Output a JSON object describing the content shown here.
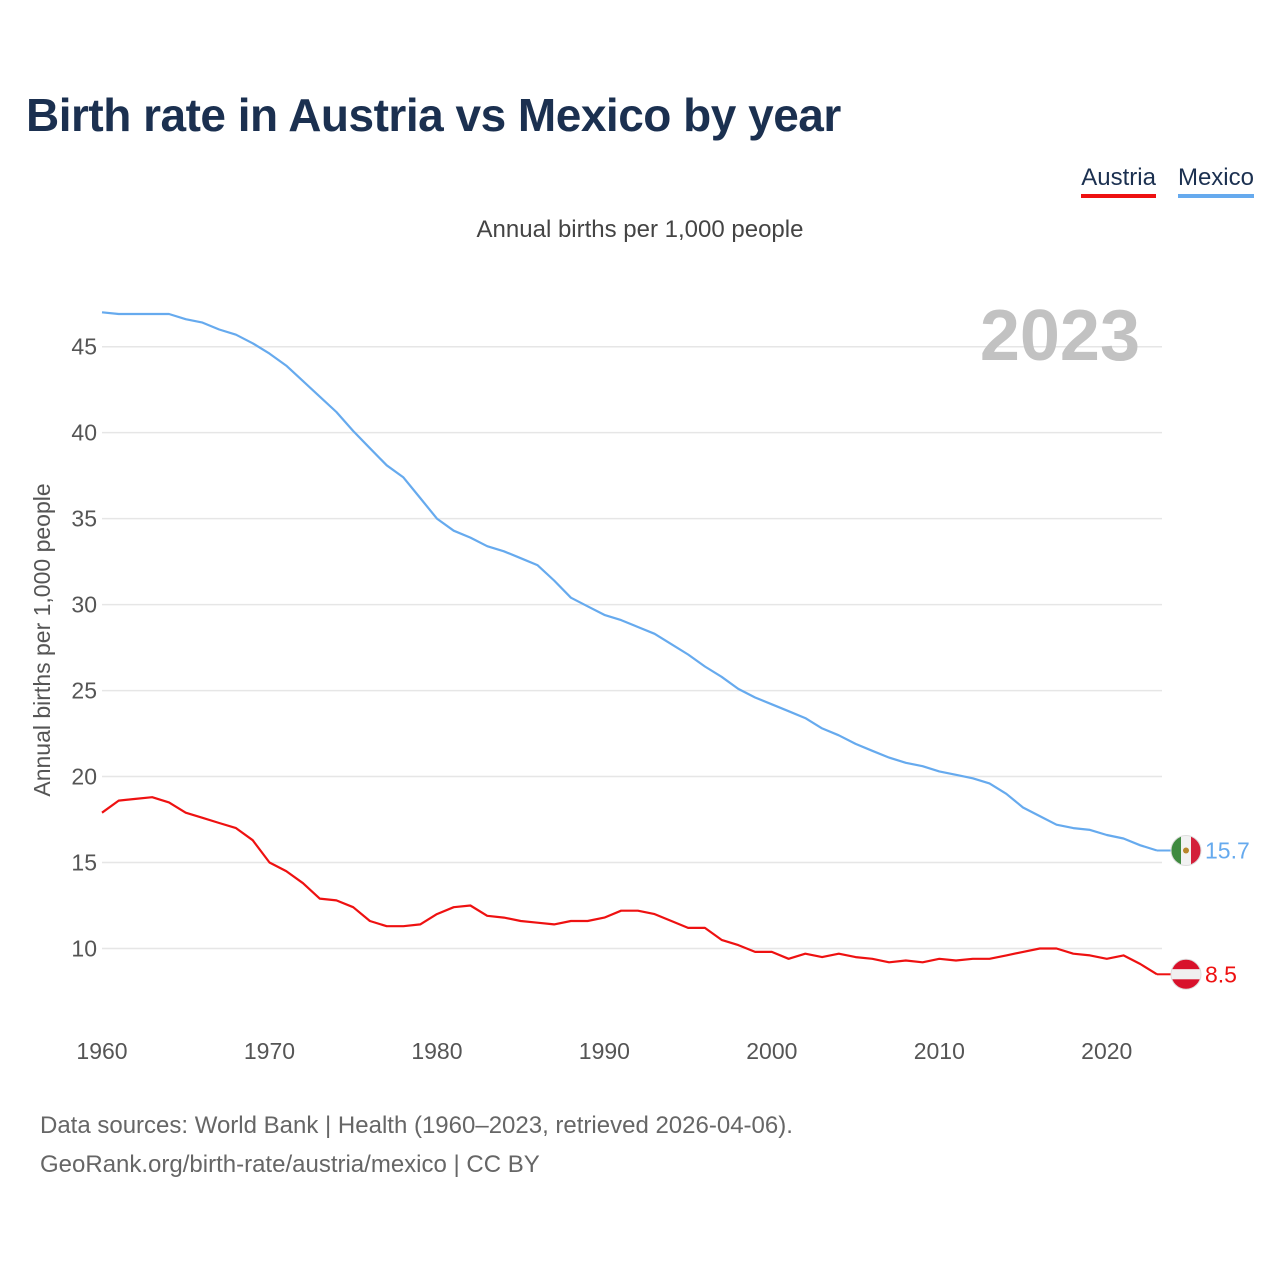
{
  "title": "Birth rate in Austria vs Mexico by year",
  "legend": [
    {
      "name": "Austria",
      "color": "#ee1111"
    },
    {
      "name": "Mexico",
      "color": "#66aaee"
    }
  ],
  "subtitle": "Annual births per 1,000 people",
  "year_watermark": "2023",
  "source": {
    "line1": "Data sources: World Bank | Health (1960–2023, retrieved 2026-04-06).",
    "line2": "GeoRank.org/birth-rate/austria/mexico | CC BY"
  },
  "chart_data": {
    "type": "line",
    "title": "Birth rate in Austria vs Mexico by year",
    "xlabel": "",
    "ylabel": "Annual births per 1,000 people",
    "xlim": [
      1960,
      2023
    ],
    "ylim": [
      5.9,
      47.6
    ],
    "x_ticks": [
      1960,
      1970,
      1980,
      1990,
      2000,
      2010,
      2020
    ],
    "y_ticks": [
      10,
      15,
      20,
      25,
      30,
      35,
      40,
      45
    ],
    "grid": true,
    "x": [
      1960,
      1961,
      1962,
      1963,
      1964,
      1965,
      1966,
      1967,
      1968,
      1969,
      1970,
      1971,
      1972,
      1973,
      1974,
      1975,
      1976,
      1977,
      1978,
      1979,
      1980,
      1981,
      1982,
      1983,
      1984,
      1985,
      1986,
      1987,
      1988,
      1989,
      1990,
      1991,
      1992,
      1993,
      1994,
      1995,
      1996,
      1997,
      1998,
      1999,
      2000,
      2001,
      2002,
      2003,
      2004,
      2005,
      2006,
      2007,
      2008,
      2009,
      2010,
      2011,
      2012,
      2013,
      2014,
      2015,
      2016,
      2017,
      2018,
      2019,
      2020,
      2021,
      2022,
      2023
    ],
    "series": [
      {
        "name": "Austria",
        "color": "#ee1111",
        "end_label": "8.5",
        "values": [
          17.9,
          18.6,
          18.7,
          18.8,
          18.5,
          17.9,
          17.6,
          17.3,
          17.0,
          16.3,
          15.0,
          14.5,
          13.8,
          12.9,
          12.8,
          12.4,
          11.6,
          11.3,
          11.3,
          11.4,
          12.0,
          12.4,
          12.5,
          11.9,
          11.8,
          11.6,
          11.5,
          11.4,
          11.6,
          11.6,
          11.8,
          12.2,
          12.2,
          12.0,
          11.6,
          11.2,
          11.2,
          10.5,
          10.2,
          9.8,
          9.8,
          9.4,
          9.7,
          9.5,
          9.7,
          9.5,
          9.4,
          9.2,
          9.3,
          9.2,
          9.4,
          9.3,
          9.4,
          9.4,
          9.6,
          9.8,
          10.0,
          10.0,
          9.7,
          9.6,
          9.4,
          9.6,
          9.1,
          8.5
        ]
      },
      {
        "name": "Mexico",
        "color": "#66aaee",
        "end_label": "15.7",
        "values": [
          47.0,
          46.9,
          46.9,
          46.9,
          46.9,
          46.6,
          46.4,
          46.0,
          45.7,
          45.2,
          44.6,
          43.9,
          43.0,
          42.1,
          41.2,
          40.1,
          39.1,
          38.1,
          37.4,
          36.2,
          35.0,
          34.3,
          33.9,
          33.4,
          33.1,
          32.7,
          32.3,
          31.4,
          30.4,
          29.9,
          29.4,
          29.1,
          28.7,
          28.3,
          27.7,
          27.1,
          26.4,
          25.8,
          25.1,
          24.6,
          24.2,
          23.8,
          23.4,
          22.8,
          22.4,
          21.9,
          21.5,
          21.1,
          20.8,
          20.6,
          20.3,
          20.1,
          19.9,
          19.6,
          19.0,
          18.2,
          17.7,
          17.2,
          17.0,
          16.9,
          16.6,
          16.4,
          16.0,
          15.7
        ]
      }
    ]
  }
}
